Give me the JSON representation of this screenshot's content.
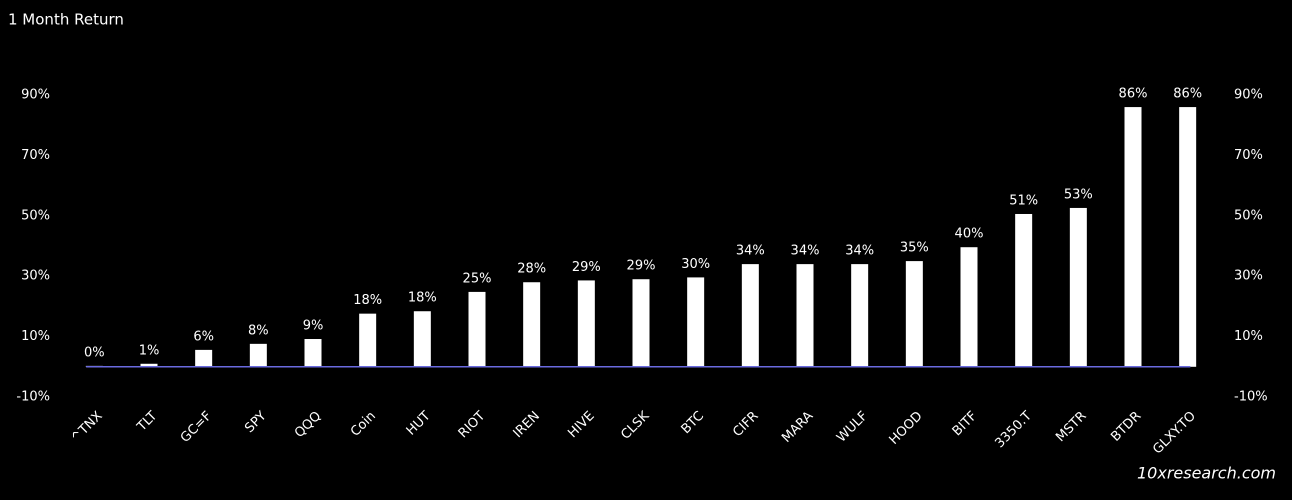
{
  "chart_data": {
    "type": "bar",
    "title": "1 Month Return",
    "watermark": "10xresearch.com",
    "categories": [
      "^TNX",
      "TLT",
      "GC=F",
      "SPY",
      "QQQ",
      "Coin",
      "HUT",
      "RIOT",
      "IREN",
      "HIVE",
      "CLSK",
      "BTC",
      "CIFR",
      "MARA",
      "WULF",
      "HOOD",
      "BITF",
      "3350.T",
      "MSTR",
      "BTDR",
      "GLXY.TO"
    ],
    "values": [
      0.3,
      1,
      5.6,
      7.6,
      9.2,
      17.6,
      18.4,
      24.8,
      28,
      28.6,
      29,
      29.6,
      34,
      34,
      34,
      35,
      39.6,
      50.6,
      52.6,
      86,
      86
    ],
    "value_labels": [
      "0%",
      "1%",
      "6%",
      "8%",
      "9%",
      "18%",
      "18%",
      "25%",
      "28%",
      "29%",
      "29%",
      "30%",
      "34%",
      "34%",
      "34%",
      "35%",
      "40%",
      "51%",
      "53%",
      "86%",
      "86%"
    ],
    "color": "#ffffff",
    "zero_line_color": "#6a6adf",
    "ylim": [
      -10,
      90
    ],
    "yticks": [
      {
        "value": -10,
        "label": "-10%"
      },
      {
        "value": 10,
        "label": "10%"
      },
      {
        "value": 30,
        "label": "30%"
      },
      {
        "value": 50,
        "label": "50%"
      },
      {
        "value": 70,
        "label": "70%"
      },
      {
        "value": 90,
        "label": "90%"
      }
    ],
    "y2lim": [
      -10,
      90
    ],
    "y2ticks": [
      {
        "value": -10,
        "label": "-10%"
      },
      {
        "value": 10,
        "label": "10%"
      },
      {
        "value": 30,
        "label": "30%"
      },
      {
        "value": 50,
        "label": "50%"
      },
      {
        "value": 70,
        "label": "70%"
      },
      {
        "value": 90,
        "label": "90%"
      }
    ],
    "grid": false
  }
}
